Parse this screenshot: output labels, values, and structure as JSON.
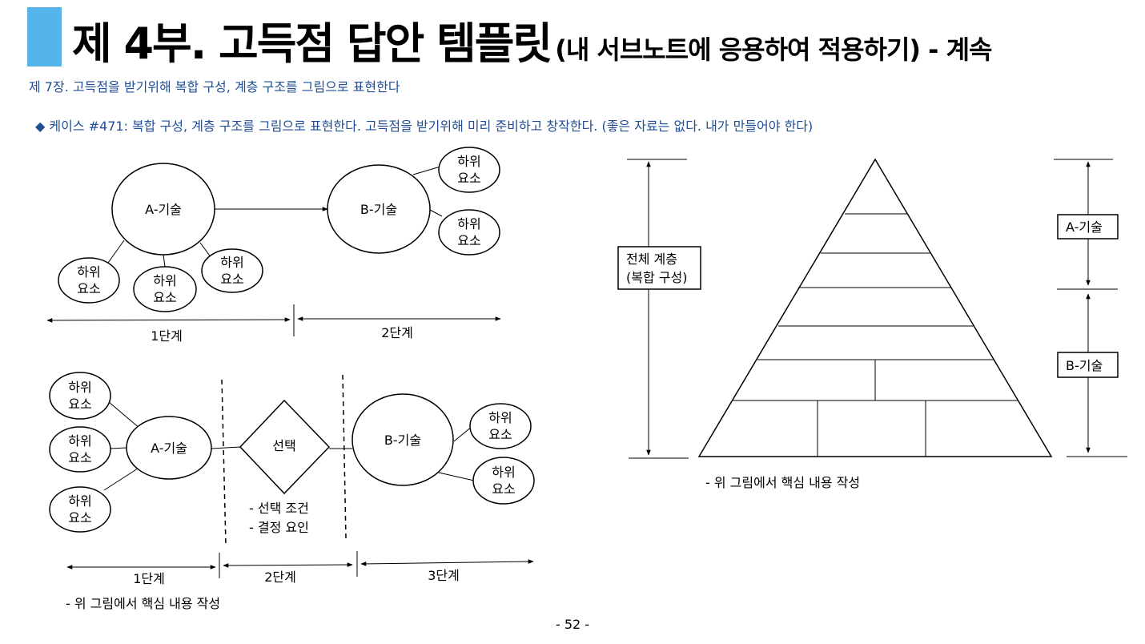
{
  "header": {
    "title_main": "제 4부. 고득점 답안 템플릿",
    "title_sub": "(내 서브노트에 응용하여 적용하기) - 계속",
    "chapter": "제 7장. 고득점을 받기위해 복합 구성, 계층 구조를 그림으로 표현한다",
    "case": "◆ 케이스 #471: 복합 구성, 계층 구조를 그림으로 표현한다. 고득점을 받기위해 미리 준비하고 창작한다. (좋은 자료는 없다. 내가 만들어야 한다)"
  },
  "top_left": {
    "a_skill": "A-기술",
    "b_skill": "B-기술",
    "sub_line1": "하위",
    "sub_line2": "요소",
    "stage1": "1단계",
    "stage2": "2단계"
  },
  "bottom_left": {
    "a_skill": "A-기술",
    "b_skill": "B-기술",
    "choice": "선택",
    "cond1": "- 선택 조건",
    "cond2": "- 결정 요인",
    "sub_line1": "하위",
    "sub_line2": "요소",
    "stage1": "1단계",
    "stage2": "2단계",
    "stage3": "3단계",
    "note": "- 위 그림에서 핵심 내용 작성"
  },
  "pyramid": {
    "whole_line1": "전체 계층",
    "whole_line2": "(복합 구성)",
    "a_skill": "A-기술",
    "b_skill": "B-기술",
    "note": "- 위 그림에서 핵심 내용 작성"
  },
  "footer": {
    "page": "- 52 -"
  }
}
